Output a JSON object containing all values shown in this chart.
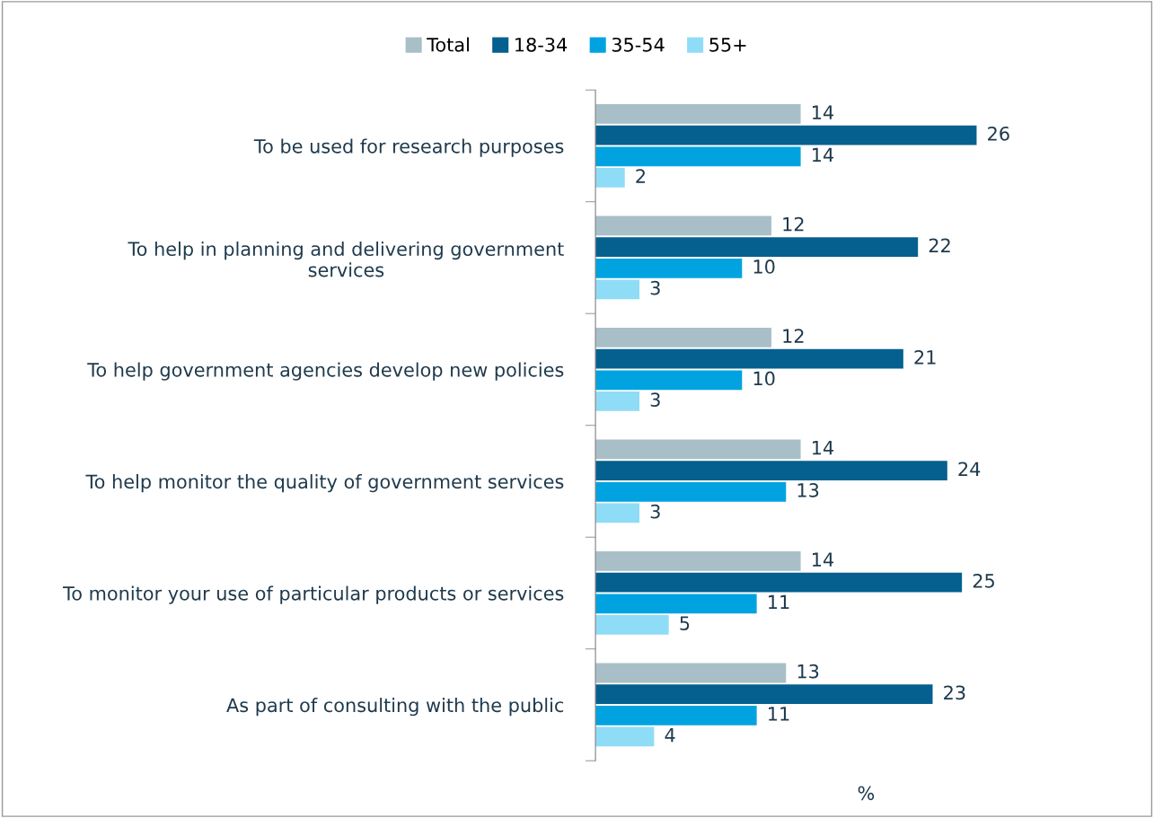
{
  "chart_data": {
    "type": "bar",
    "orientation": "horizontal",
    "categories": [
      "To be used for research purposes",
      "To help in planning and delivering government\nservices",
      "To help government agencies develop new policies",
      "To help monitor the quality of government services",
      "To monitor your use of particular products or services",
      "As part of consulting with the public"
    ],
    "series": [
      {
        "name": "Total",
        "color": "#a9bfc7",
        "values": [
          14,
          12,
          12,
          14,
          14,
          13
        ]
      },
      {
        "name": "18-34",
        "color": "#05608f",
        "values": [
          26,
          22,
          21,
          24,
          25,
          23
        ]
      },
      {
        "name": "35-54",
        "color": "#00a3e0",
        "values": [
          14,
          10,
          10,
          13,
          11,
          11
        ]
      },
      {
        "name": "55+",
        "color": "#8fdcf7",
        "values": [
          2,
          3,
          3,
          3,
          5,
          4
        ]
      }
    ],
    "xlabel": "%",
    "tick_labels": "y",
    "data_labels": true,
    "legend": "top",
    "grid": false
  }
}
